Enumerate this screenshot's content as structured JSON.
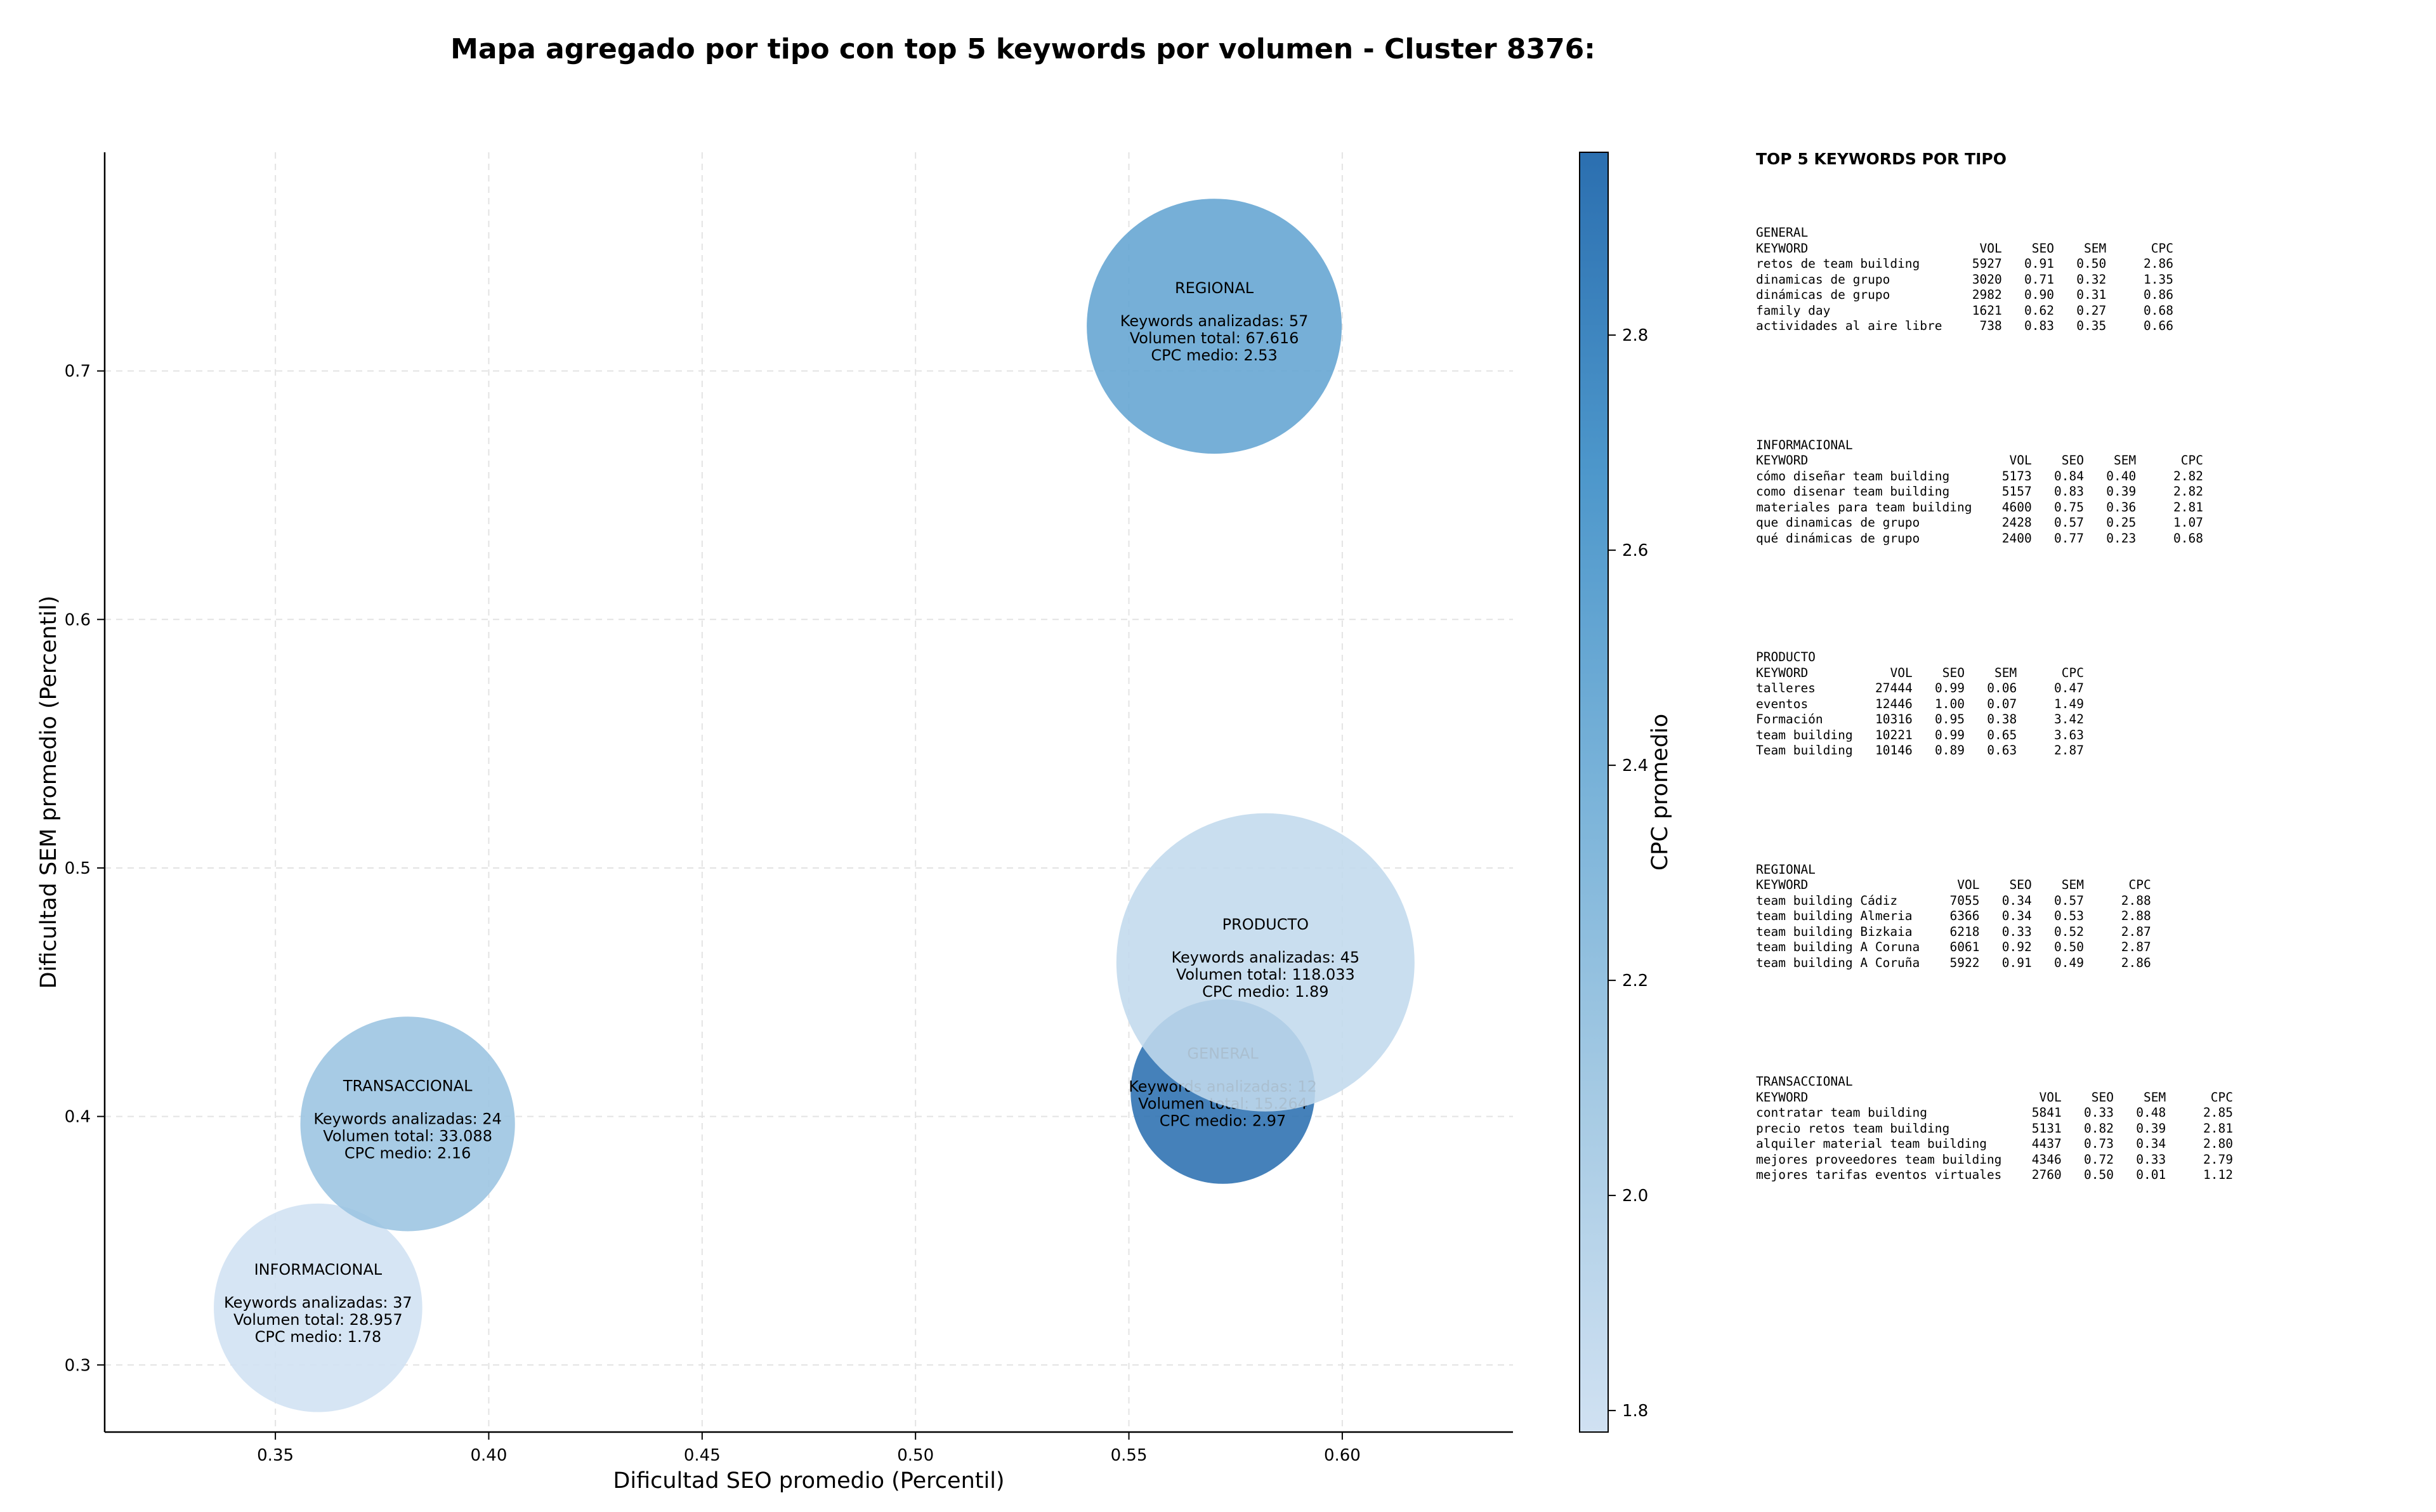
{
  "chart_data": {
    "type": "scatter",
    "title": "Mapa agregado por tipo con top 5 keywords por volumen - Cluster 8376:",
    "xlabel": "Dificultad SEO promedio (Percentil)",
    "ylabel": "Dificultad SEM promedio (Percentil)",
    "xlim": [
      0.31,
      0.64
    ],
    "ylim": [
      0.273,
      0.788
    ],
    "xticks": [
      "0.35",
      "0.40",
      "0.45",
      "0.50",
      "0.55",
      "0.60"
    ],
    "yticks": [
      "0.3",
      "0.4",
      "0.5",
      "0.6",
      "0.7"
    ],
    "grid": true,
    "colorbar": {
      "label": "CPC promedio",
      "min": 1.78,
      "max": 2.97,
      "ticks": [
        "1.8",
        "2.0",
        "2.2",
        "2.4",
        "2.6",
        "2.8"
      ],
      "colors": [
        "#c6dbef",
        "#9ecae1",
        "#6baed6",
        "#4292c6",
        "#2c6fb0"
      ]
    },
    "bubbles": [
      {
        "name": "INFORMACIONAL",
        "x": 0.36,
        "y": 0.323,
        "keywords_line": "Keywords analizadas: 37",
        "volume_line": "Volumen total: 28.957",
        "cpc_line": "CPC medio: 1.78",
        "volume": 28957,
        "cpc": 1.78
      },
      {
        "name": "TRANSACCIONAL",
        "x": 0.381,
        "y": 0.397,
        "keywords_line": "Keywords analizadas: 24",
        "volume_line": "Volumen total: 33.088",
        "cpc_line": "CPC medio: 2.16",
        "volume": 33088,
        "cpc": 2.16
      },
      {
        "name": "GENERAL",
        "x": 0.572,
        "y": 0.41,
        "keywords_line": "Keywords analizadas: 12",
        "volume_line": "Volumen total: 15.264",
        "cpc_line": "CPC medio: 2.97",
        "volume": 15264,
        "cpc": 2.97
      },
      {
        "name": "REGIONAL",
        "x": 0.57,
        "y": 0.718,
        "keywords_line": "Keywords analizadas: 57",
        "volume_line": "Volumen total: 67.616",
        "cpc_line": "CPC medio: 2.53",
        "volume": 67616,
        "cpc": 2.53
      },
      {
        "name": "PRODUCTO",
        "x": 0.582,
        "y": 0.462,
        "keywords_line": "Keywords analizadas: 45",
        "volume_line": "Volumen total: 118.033",
        "cpc_line": "CPC medio: 1.89",
        "volume": 118033,
        "cpc": 1.89
      }
    ]
  },
  "keywords_panel": {
    "heading": "TOP 5 KEYWORDS POR TIPO",
    "columns": [
      "KEYWORD",
      "VOL",
      "SEO",
      "SEM",
      "CPC"
    ],
    "groups": [
      {
        "name": "GENERAL",
        "rows": [
          [
            "retos de team building",
            "5927",
            "0.91",
            "0.50",
            "2.86"
          ],
          [
            "dinamicas de grupo",
            "3020",
            "0.71",
            "0.32",
            "1.35"
          ],
          [
            "dinámicas de grupo",
            "2982",
            "0.90",
            "0.31",
            "0.86"
          ],
          [
            "family day",
            "1621",
            "0.62",
            "0.27",
            "0.68"
          ],
          [
            "actividades al aire libre",
            "738",
            "0.83",
            "0.35",
            "0.66"
          ]
        ]
      },
      {
        "name": "INFORMACIONAL",
        "rows": [
          [
            "cómo diseñar team building",
            "5173",
            "0.84",
            "0.40",
            "2.82"
          ],
          [
            "como disenar team building",
            "5157",
            "0.83",
            "0.39",
            "2.82"
          ],
          [
            "materiales para team building",
            "4600",
            "0.75",
            "0.36",
            "2.81"
          ],
          [
            "que dinamicas de grupo",
            "2428",
            "0.57",
            "0.25",
            "1.07"
          ],
          [
            "qué dinámicas de grupo",
            "2400",
            "0.77",
            "0.23",
            "0.68"
          ]
        ]
      },
      {
        "name": "PRODUCTO",
        "rows": [
          [
            "talleres",
            "27444",
            "0.99",
            "0.06",
            "0.47"
          ],
          [
            "eventos",
            "12446",
            "1.00",
            "0.07",
            "1.49"
          ],
          [
            "Formación",
            "10316",
            "0.95",
            "0.38",
            "3.42"
          ],
          [
            "team building",
            "10221",
            "0.99",
            "0.65",
            "3.63"
          ],
          [
            "Team building",
            "10146",
            "0.89",
            "0.63",
            "2.87"
          ]
        ]
      },
      {
        "name": "REGIONAL",
        "rows": [
          [
            "team building Cádiz",
            "7055",
            "0.34",
            "0.57",
            "2.88"
          ],
          [
            "team building Almeria",
            "6366",
            "0.34",
            "0.53",
            "2.88"
          ],
          [
            "team building Bizkaia",
            "6218",
            "0.33",
            "0.52",
            "2.87"
          ],
          [
            "team building A Coruna",
            "6061",
            "0.92",
            "0.50",
            "2.87"
          ],
          [
            "team building A Coruña",
            "5922",
            "0.91",
            "0.49",
            "2.86"
          ]
        ]
      },
      {
        "name": "TRANSACCIONAL",
        "rows": [
          [
            "contratar team building",
            "5841",
            "0.33",
            "0.48",
            "2.85"
          ],
          [
            "precio retos team building",
            "5131",
            "0.82",
            "0.39",
            "2.81"
          ],
          [
            "alquiler material team building",
            "4437",
            "0.73",
            "0.34",
            "2.80"
          ],
          [
            "mejores proveedores team building",
            "4346",
            "0.72",
            "0.33",
            "2.79"
          ],
          [
            "mejores tarifas eventos virtuales",
            "2760",
            "0.50",
            "0.01",
            "1.12"
          ]
        ]
      }
    ]
  }
}
